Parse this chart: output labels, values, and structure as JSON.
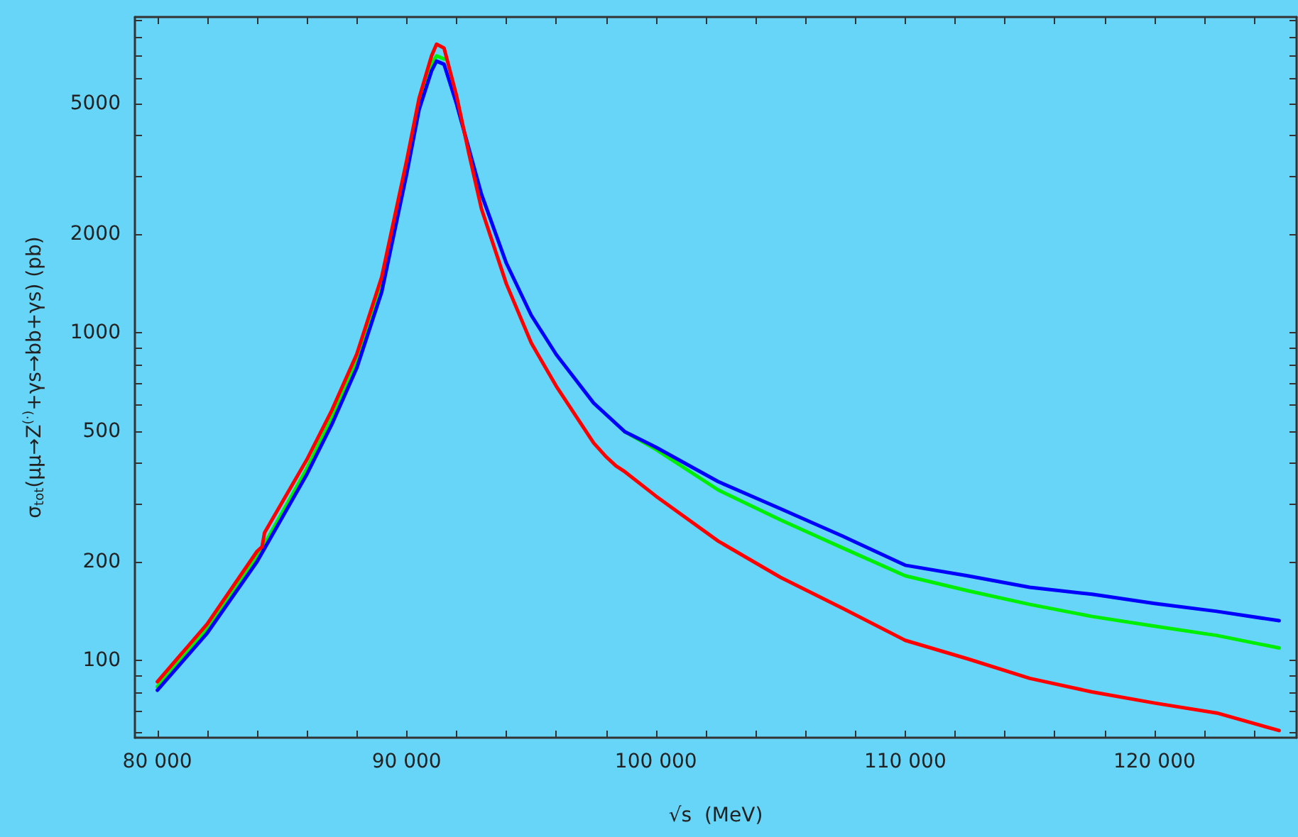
{
  "chart_data": {
    "type": "line",
    "xlabel": "√s  (MeV)",
    "ylabel": "σ$_{tot}$(μμ→Z$^{(·)}$+γs→bb+γs) (pb)",
    "log": "y",
    "grid": false,
    "marker": "none",
    "line_style": "solid",
    "xlim": [
      79100,
      125700
    ],
    "ylim": [
      58,
      9200
    ],
    "xticks": [
      {
        "value": 80000,
        "label": "80 000"
      },
      {
        "value": 82000,
        "label": null
      },
      {
        "value": 84000,
        "label": null
      },
      {
        "value": 86000,
        "label": null
      },
      {
        "value": 88000,
        "label": null
      },
      {
        "value": 90000,
        "label": "90 000"
      },
      {
        "value": 92000,
        "label": null
      },
      {
        "value": 94000,
        "label": null
      },
      {
        "value": 96000,
        "label": null
      },
      {
        "value": 98000,
        "label": null
      },
      {
        "value": 100000,
        "label": "100 000"
      },
      {
        "value": 102000,
        "label": null
      },
      {
        "value": 104000,
        "label": null
      },
      {
        "value": 106000,
        "label": null
      },
      {
        "value": 108000,
        "label": null
      },
      {
        "value": 110000,
        "label": "110 000"
      },
      {
        "value": 112000,
        "label": null
      },
      {
        "value": 114000,
        "label": null
      },
      {
        "value": 116000,
        "label": null
      },
      {
        "value": 118000,
        "label": null
      },
      {
        "value": 120000,
        "label": "120 000"
      },
      {
        "value": 122000,
        "label": null
      },
      {
        "value": 124000,
        "label": null
      }
    ],
    "yticks": [
      {
        "value": 60,
        "label": null
      },
      {
        "value": 70,
        "label": null
      },
      {
        "value": 80,
        "label": null
      },
      {
        "value": 90,
        "label": null
      },
      100,
      200,
      {
        "value": 300,
        "label": null
      },
      {
        "value": 400,
        "label": null
      },
      500,
      {
        "value": 600,
        "label": null
      },
      {
        "value": 700,
        "label": null
      },
      {
        "value": 800,
        "label": null
      },
      {
        "value": 900,
        "label": null
      },
      1000,
      2000,
      {
        "value": 3000,
        "label": null
      },
      {
        "value": 4000,
        "label": null
      },
      5000,
      {
        "value": 6000,
        "label": null
      },
      {
        "value": 7000,
        "label": null
      },
      {
        "value": 8000,
        "label": null
      },
      {
        "value": 9000,
        "label": null
      }
    ],
    "series": [
      {
        "color": "#00ee00",
        "x": [
          80000,
          82000,
          84000,
          86000,
          87000,
          88000,
          89000,
          90000,
          90500,
          91000,
          91200,
          91500,
          92000,
          92500,
          93000,
          94000,
          95000,
          96000,
          97500,
          98760,
          100000,
          102500,
          105000,
          107500,
          110000,
          112500,
          115000,
          117500,
          120000,
          122500,
          125000
        ],
        "values": [
          83,
          125,
          206,
          385,
          550,
          815,
          1400,
          3200,
          5000,
          6600,
          7000,
          6850,
          null,
          null,
          null,
          null,
          null,
          null,
          null,
          498,
          440,
          331,
          268,
          220,
          181,
          163,
          148,
          136,
          127,
          119,
          109
        ]
      },
      {
        "color": "#0000ff",
        "x": [
          80000,
          82000,
          84000,
          86000,
          87000,
          88000,
          89000,
          90000,
          90500,
          91000,
          91200,
          91500,
          92000,
          92500,
          93000,
          94000,
          95000,
          96000,
          97500,
          98760,
          100000,
          102500,
          105000,
          107500,
          110000,
          112500,
          115000,
          117500,
          120000,
          122500,
          125000
        ],
        "values": [
          81,
          121,
          200,
          370,
          525,
          780,
          1330,
          3050,
          4800,
          6300,
          6750,
          6600,
          5000,
          3640,
          2650,
          1630,
          1130,
          858,
          610,
          498,
          447,
          351,
          290,
          239,
          195,
          181,
          167,
          159,
          149,
          141,
          132
        ]
      },
      {
        "color": "#ff0000",
        "x": [
          80000,
          82000,
          84000,
          84200,
          84300,
          86000,
          87000,
          88000,
          89000,
          90000,
          90500,
          91000,
          91200,
          91500,
          92000,
          92500,
          93000,
          94000,
          95000,
          96000,
          97500,
          98000,
          98200,
          98400,
          98760,
          100000,
          102500,
          105000,
          107500,
          110000,
          112500,
          115000,
          117500,
          120000,
          122500,
          125000
        ],
        "values": [
          86,
          129,
          215,
          222,
          245,
          410,
          580,
          860,
          1480,
          3350,
          5200,
          7000,
          7600,
          7400,
          5300,
          3520,
          2390,
          1410,
          930,
          687,
          461,
          418,
          405,
          392,
          376,
          317,
          231,
          179,
          144,
          115,
          101,
          88,
          80,
          74,
          69,
          61
        ]
      }
    ]
  }
}
